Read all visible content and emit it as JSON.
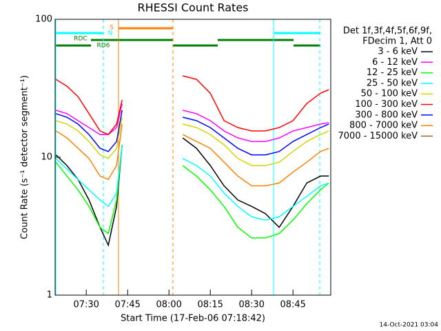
{
  "chart_data": {
    "type": "line",
    "title": "RHESSI Count Rates",
    "xlabel": "Start Time (17-Feb-06 07:18:42)",
    "ylabel": "Count Rate (s⁻¹ detector segment⁻¹)",
    "legend_header": [
      "Det 1f,3f,4f,5f,6f,9f,",
      "FDecim 1, Att 0"
    ],
    "annotations": [
      "S",
      "N",
      "RDC",
      "RD6"
    ],
    "footer": "14-Oct-2021 03:04",
    "log_y": true,
    "xlim": [
      "07:18:42",
      "08:58:42"
    ],
    "xticks": [
      "07:30",
      "07:45",
      "08:00",
      "08:15",
      "08:30",
      "08:45"
    ],
    "ylim": [
      1,
      100
    ],
    "yticks": [
      1,
      10,
      100
    ],
    "x": [
      "07:19",
      "07:23",
      "07:27",
      "07:31",
      "07:35",
      "07:38",
      "07:41",
      "07:43",
      "07:50",
      "08:05",
      "08:10",
      "08:15",
      "08:20",
      "08:25",
      "08:30",
      "08:35",
      "08:40",
      "08:45",
      "08:50",
      "08:55",
      "08:58"
    ],
    "series": [
      {
        "name": "3 - 6 keV",
        "color": "#000000",
        "values": [
          10.4,
          8.7,
          6.9,
          4.9,
          3.1,
          2.3,
          4.4,
          12.3,
          null,
          13.8,
          11.6,
          8.7,
          6.2,
          4.9,
          4.4,
          3.9,
          3.1,
          4.4,
          6.5,
          7.3,
          7.3
        ]
      },
      {
        "name": "6 - 12 keV",
        "color": "#ff00ff",
        "values": [
          21.9,
          20.7,
          18.4,
          16.4,
          14.6,
          14.6,
          16.4,
          24.5,
          null,
          21.9,
          20.7,
          18.4,
          15.5,
          13.8,
          13.0,
          13.0,
          13.8,
          15.5,
          16.4,
          17.4,
          17.8
        ]
      },
      {
        "name": "12 - 25 keV",
        "color": "#00ff00",
        "values": [
          9.2,
          7.3,
          5.8,
          4.4,
          3.1,
          2.8,
          4.9,
          12.3,
          null,
          8.7,
          7.3,
          5.8,
          4.4,
          3.1,
          2.6,
          2.6,
          2.8,
          3.5,
          4.6,
          5.8,
          6.5
        ]
      },
      {
        "name": "25 - 50 keV",
        "color": "#00ffff",
        "values": [
          9.8,
          8.2,
          6.9,
          5.8,
          4.9,
          4.4,
          5.5,
          12.3,
          null,
          9.8,
          8.7,
          7.3,
          5.5,
          4.4,
          3.7,
          3.5,
          3.7,
          4.4,
          5.2,
          6.2,
          6.5
        ]
      },
      {
        "name": "50 - 100 keV",
        "color": "#d4d400",
        "values": [
          18.4,
          17.4,
          15.5,
          13.0,
          10.4,
          9.8,
          11.6,
          19.5,
          null,
          17.4,
          16.4,
          14.6,
          12.3,
          9.8,
          8.7,
          8.7,
          9.2,
          11.0,
          13.0,
          14.6,
          15.5
        ]
      },
      {
        "name": "100 - 300 keV",
        "color": "#ff0000",
        "values": [
          36.7,
          32.7,
          27.5,
          20.7,
          15.5,
          14.6,
          17.4,
          26,
          null,
          38.9,
          36.7,
          29.1,
          18.4,
          16.4,
          15.5,
          15.5,
          16.4,
          18.4,
          24.5,
          29.1,
          30.9
        ]
      },
      {
        "name": "300 - 800 keV",
        "color": "#0000ff",
        "values": [
          20.7,
          19.5,
          17.4,
          14.6,
          11.6,
          11.0,
          13.0,
          21.9,
          null,
          19.5,
          18.4,
          16.4,
          13.8,
          11.6,
          10.4,
          10.4,
          11.0,
          13.0,
          14.6,
          16.4,
          17.4
        ]
      },
      {
        "name": "800 - 7000 keV",
        "color": "#ff8000",
        "values": [
          15.5,
          13.8,
          11.6,
          9.8,
          7.3,
          6.9,
          8.7,
          17.4,
          null,
          14.6,
          13.0,
          11.6,
          9.2,
          7.3,
          6.2,
          6.2,
          6.5,
          7.8,
          9.2,
          11.0,
          11.6
        ]
      },
      {
        "name": "7000 - 15000 keV",
        "color": "#996633",
        "values": [
          null,
          null,
          null,
          null,
          null,
          null,
          null,
          null,
          null,
          null,
          null,
          null,
          null,
          null,
          null,
          null,
          null,
          null,
          null,
          null,
          null
        ]
      }
    ]
  }
}
